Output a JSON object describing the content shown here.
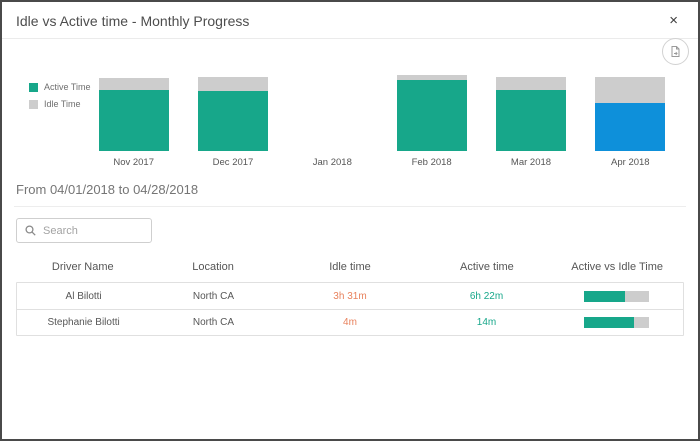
{
  "modal": {
    "title": "Idle vs Active time - Monthly Progress",
    "close_icon": "×"
  },
  "export_button": {
    "icon": "export-document-icon"
  },
  "colors": {
    "active": "#17a78a",
    "idle": "#cdcdcd",
    "selected_month": "#0e90da",
    "idle_text": "#e8825d",
    "active_text": "#17a78a",
    "progress_track": "#cdcdcd"
  },
  "legend": {
    "items": [
      {
        "label": "Active Time",
        "color": "#17a78a"
      },
      {
        "label": "Idle Time",
        "color": "#cdcdcd"
      }
    ]
  },
  "chart_data": {
    "type": "bar",
    "stacked": true,
    "title": "Idle vs Active time - Monthly Progress",
    "categories": [
      "Nov 2017",
      "Dec 2017",
      "Jan 2018",
      "Feb 2018",
      "Mar 2018",
      "Apr 2018"
    ],
    "series": [
      {
        "name": "Active Time",
        "values": [
          80,
          79,
          0,
          93,
          80,
          63
        ]
      },
      {
        "name": "Idle Time",
        "values": [
          16,
          18,
          0,
          7,
          17,
          34
        ]
      }
    ],
    "ylim": [
      0,
      100
    ],
    "grid": false,
    "legend_position": "left",
    "highlighted_category": "Apr 2018",
    "highlight_color": "#0e90da",
    "bar_colors": {
      "active": "#17a78a",
      "idle": "#cdcdcd"
    }
  },
  "period": {
    "label": "From 04/01/2018 to 04/28/2018"
  },
  "search": {
    "placeholder": "Search",
    "icon": "magnifier"
  },
  "table": {
    "columns": [
      "Driver Name",
      "Location",
      "Idle time",
      "Active time",
      "Active vs Idle Time"
    ],
    "rows": [
      {
        "driver": "Al Bilotti",
        "location": "North CA",
        "idle_time": "3h 31m",
        "active_time": "6h 22m",
        "active_pct": 63
      },
      {
        "driver": "Stephanie Bilotti",
        "location": "North CA",
        "idle_time": "4m",
        "active_time": "14m",
        "active_pct": 77
      }
    ]
  }
}
